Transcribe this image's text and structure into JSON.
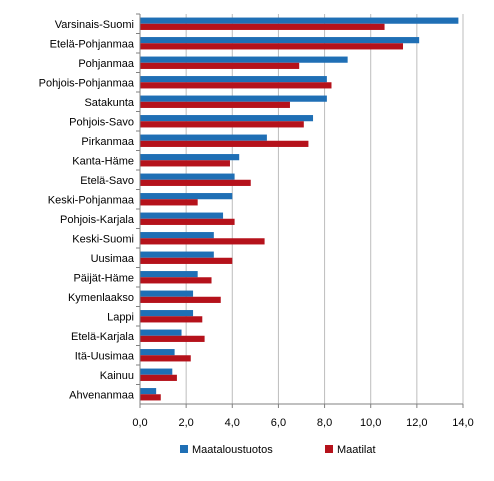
{
  "chart_data": {
    "type": "bar",
    "orientation": "horizontal",
    "categories": [
      "Varsinais-Suomi",
      "Etelä-Pohjanmaa",
      "Pohjanmaa",
      "Pohjois-Pohjanmaa",
      "Satakunta",
      "Pohjois-Savo",
      "Pirkanmaa",
      "Kanta-Häme",
      "Etelä-Savo",
      "Keski-Pohjanmaa",
      "Pohjois-Karjala",
      "Keski-Suomi",
      "Uusimaa",
      "Päijät-Häme",
      "Kymenlaakso",
      "Lappi",
      "Etelä-Karjala",
      "Itä-Uusimaa",
      "Kainuu",
      "Ahvenanmaa"
    ],
    "series": [
      {
        "name": "Maataloustuotos",
        "color": "#1f6fb5",
        "values": [
          13.8,
          12.1,
          9.0,
          8.1,
          8.1,
          7.5,
          5.5,
          4.3,
          4.1,
          4.0,
          3.6,
          3.2,
          3.2,
          2.5,
          2.3,
          2.3,
          1.8,
          1.5,
          1.4,
          0.7
        ]
      },
      {
        "name": "Maatilat",
        "color": "#b5121b",
        "values": [
          10.6,
          11.4,
          6.9,
          8.3,
          6.5,
          7.1,
          7.3,
          3.9,
          4.8,
          2.5,
          4.1,
          5.4,
          4.0,
          3.1,
          3.5,
          2.7,
          2.8,
          2.2,
          1.6,
          0.9
        ]
      }
    ],
    "x_ticks": [
      "0,0",
      "2,0",
      "4,0",
      "6,0",
      "8,0",
      "10,0",
      "12,0",
      "14,0"
    ],
    "xlim": [
      0,
      14
    ],
    "legend_position": "bottom",
    "grid": true
  }
}
